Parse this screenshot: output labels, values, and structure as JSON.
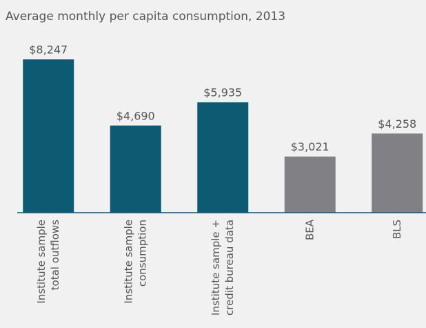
{
  "chart_data": {
    "type": "bar",
    "title": "Average monthly per capita consumption, 2013",
    "categories": [
      [
        "Institute sample",
        "total outflows"
      ],
      [
        "Institute sample",
        "consumption"
      ],
      [
        "Institute sample +",
        "credit bureau data"
      ],
      [
        "BEA"
      ],
      [
        "BLS"
      ]
    ],
    "values": [
      8247,
      4690,
      5935,
      3021,
      4258
    ],
    "value_labels": [
      "$8,247",
      "$4,690",
      "$5,935",
      "$3,021",
      "$4,258"
    ],
    "colors": [
      "#0d5b73",
      "#0d5b73",
      "#0d5b73",
      "#818185",
      "#818185"
    ]
  }
}
